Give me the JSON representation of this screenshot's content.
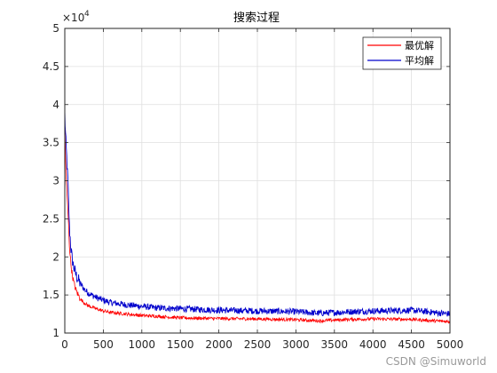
{
  "chart_data": {
    "type": "line",
    "title": "搜索过程",
    "xlabel": "",
    "ylabel": "",
    "xlim": [
      0,
      5000
    ],
    "ylim": [
      10000,
      50000
    ],
    "x_ticks": [
      0,
      500,
      1000,
      1500,
      2000,
      2500,
      3000,
      3500,
      4000,
      4500,
      5000
    ],
    "y_ticks": [
      10000,
      15000,
      20000,
      25000,
      30000,
      35000,
      40000,
      45000,
      50000
    ],
    "y_tick_labels": [
      "1",
      "1.5",
      "2",
      "2.5",
      "3",
      "3.5",
      "4",
      "4.5",
      "5"
    ],
    "y_exponent_base": "×10",
    "y_exponent_power": "4",
    "grid": true,
    "legend_position": "top-right",
    "series": [
      {
        "name": "最优解",
        "color": "#ff0000",
        "x": [
          0,
          10,
          20,
          30,
          40,
          50,
          60,
          80,
          100,
          120,
          150,
          200,
          250,
          300,
          400,
          500,
          600,
          800,
          1000,
          1200,
          1500,
          2000,
          2500,
          3000,
          3300,
          3500,
          3700,
          4000,
          4500,
          4800,
          5000
        ],
        "y": [
          37500,
          32500,
          30000,
          28000,
          26000,
          24000,
          21500,
          19000,
          17500,
          16500,
          15500,
          14500,
          14000,
          13600,
          13200,
          12900,
          12700,
          12500,
          12300,
          12200,
          12000,
          11900,
          11850,
          11750,
          11600,
          11700,
          11800,
          11850,
          11800,
          11600,
          11500
        ]
      },
      {
        "name": "平均解",
        "color": "#0000cc",
        "x": [
          0,
          10,
          20,
          30,
          40,
          50,
          60,
          80,
          100,
          120,
          150,
          200,
          250,
          300,
          400,
          500,
          600,
          800,
          1000,
          1200,
          1500,
          2000,
          2500,
          3000,
          3300,
          3500,
          3700,
          4000,
          4500,
          4800,
          5000
        ],
        "y": [
          39000,
          36000,
          34000,
          32000,
          30000,
          27000,
          24000,
          21000,
          19500,
          18500,
          17500,
          16500,
          15800,
          15300,
          14700,
          14300,
          14000,
          13700,
          13500,
          13300,
          13200,
          13000,
          12900,
          12800,
          12600,
          12700,
          12800,
          12900,
          13000,
          12700,
          12500
        ]
      }
    ]
  },
  "watermark": "CSDN @Simuworld"
}
